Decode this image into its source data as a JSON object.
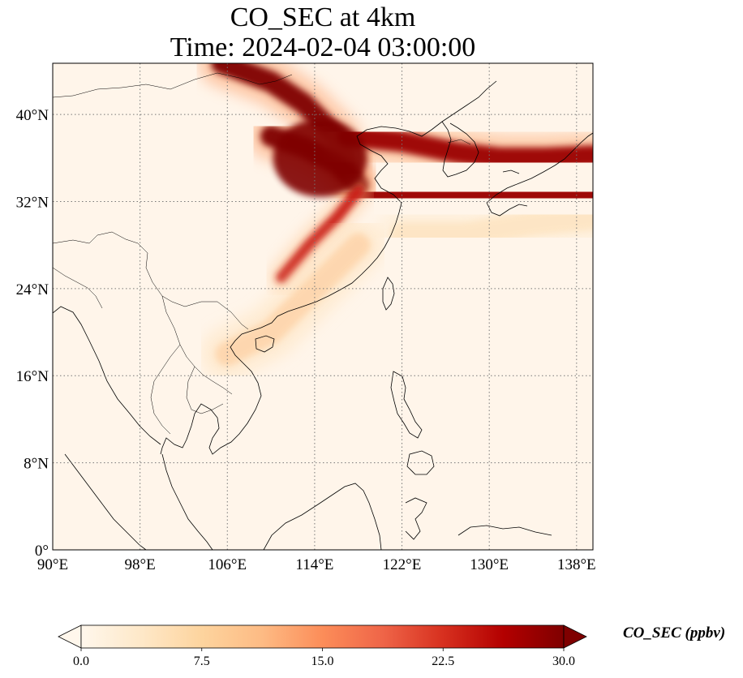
{
  "title": {
    "line1": "CO_SEC at 4km",
    "line2": "Time: 2024-02-04 03:00:00"
  },
  "map": {
    "extent": {
      "lon": [
        90,
        139.5
      ],
      "lat": [
        0,
        44.7
      ]
    },
    "lon_ticks": [
      {
        "value": 90,
        "label": "90°E"
      },
      {
        "value": 98,
        "label": "98°E"
      },
      {
        "value": 106,
        "label": "106°E"
      },
      {
        "value": 114,
        "label": "114°E"
      },
      {
        "value": 122,
        "label": "122°E"
      },
      {
        "value": 130,
        "label": "130°E"
      },
      {
        "value": 138,
        "label": "138°E"
      }
    ],
    "lat_ticks": [
      {
        "value": 0,
        "label": "0°"
      },
      {
        "value": 8,
        "label": "8°N"
      },
      {
        "value": 16,
        "label": "16°N"
      },
      {
        "value": 24,
        "label": "24°N"
      },
      {
        "value": 32,
        "label": "32°N"
      },
      {
        "value": 40,
        "label": "40°N"
      }
    ],
    "gridlines": "dotted",
    "background_color": "#fff5ea",
    "plumes": [
      {
        "name": "northern-plume",
        "level": 30,
        "points": [
          [
            105.5,
            44.7
          ],
          [
            110,
            43
          ],
          [
            113,
            41
          ],
          [
            116,
            38
          ],
          [
            117,
            35
          ]
        ]
      },
      {
        "name": "central-core",
        "level": 30,
        "points": [
          [
            110,
            38
          ],
          [
            113,
            37
          ],
          [
            116,
            35.5
          ],
          [
            118,
            33.5
          ]
        ]
      },
      {
        "name": "eastward-plume-north",
        "level": 28,
        "points": [
          [
            117,
            38
          ],
          [
            122,
            37.5
          ],
          [
            127,
            36.5
          ],
          [
            131,
            36
          ],
          [
            135,
            36
          ],
          [
            139.5,
            36.2
          ]
        ]
      },
      {
        "name": "eastward-plume-south",
        "level": 28,
        "points": [
          [
            118,
            32.8
          ],
          [
            122,
            32.5
          ],
          [
            126,
            32.4
          ],
          [
            130,
            32.5
          ],
          [
            134,
            32.5
          ],
          [
            139.5,
            32.6
          ]
        ]
      },
      {
        "name": "southwest-tail",
        "level": 24,
        "points": [
          [
            118,
            33
          ],
          [
            116,
            30.5
          ],
          [
            113.5,
            28
          ],
          [
            111,
            25
          ]
        ]
      },
      {
        "name": "secondary-haze",
        "level": 10,
        "points": [
          [
            106,
            18
          ],
          [
            110,
            20
          ],
          [
            114,
            24
          ],
          [
            118,
            28
          ]
        ]
      },
      {
        "name": "pacific-haze",
        "level": 6,
        "points": [
          [
            122,
            29
          ],
          [
            128,
            29
          ],
          [
            134,
            30
          ],
          [
            139.5,
            30.5
          ]
        ]
      }
    ]
  },
  "colorbar": {
    "min": 0.0,
    "max": 30.0,
    "extend": "both",
    "colormap": "OrRd",
    "colors": [
      "#fff7ec",
      "#fee8c8",
      "#fdd49e",
      "#fdbb84",
      "#fc8d59",
      "#ef6548",
      "#d7301f",
      "#b30000",
      "#7f0000"
    ],
    "ticks": [
      {
        "value": 0.0,
        "label": "0.0"
      },
      {
        "value": 7.5,
        "label": "7.5"
      },
      {
        "value": 15.0,
        "label": "15.0"
      },
      {
        "value": 22.5,
        "label": "22.5"
      },
      {
        "value": 30.0,
        "label": "30.0"
      }
    ],
    "label": "CO_SEC (ppbv)"
  }
}
